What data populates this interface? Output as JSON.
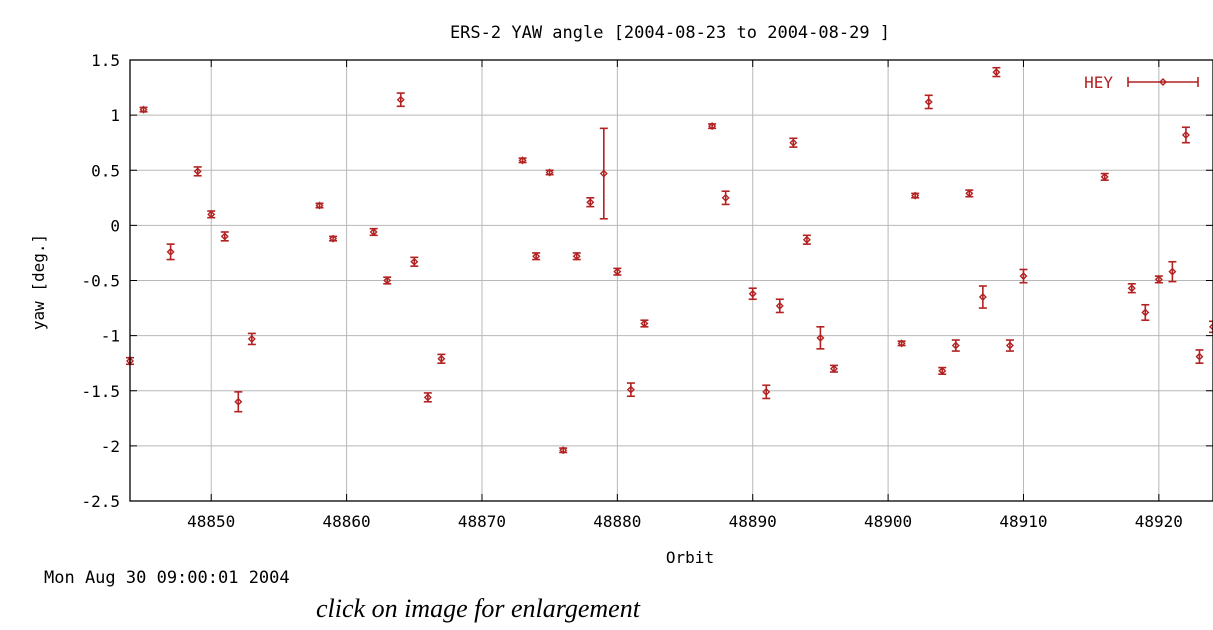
{
  "page": {
    "timestamp": "Mon Aug 30 09:00:01 2004",
    "caption": "click on image for enlargement"
  },
  "chart_data": {
    "type": "scatter",
    "title": "ERS-2 YAW angle [2004-08-23 to 2004-08-29 ]",
    "xlabel": "Orbit",
    "ylabel": "yaw [deg.]",
    "xlim": [
      48844,
      48924
    ],
    "ylim": [
      -2.5,
      1.5
    ],
    "xticks": [
      48850,
      48860,
      48870,
      48880,
      48890,
      48900,
      48910,
      48920
    ],
    "yticks": [
      1.5,
      1,
      0.5,
      0,
      -0.5,
      -1,
      -1.5,
      -2,
      -2.5
    ],
    "ytick_labels": [
      "1.5",
      "1",
      "0.5",
      "0",
      "-0.5",
      "-1",
      "-1.5",
      "-2",
      "-2.5"
    ],
    "grid": true,
    "legend_position": "top-right",
    "point_color": "#b22222",
    "series": [
      {
        "name": "HEY",
        "error_bars": true,
        "points": [
          {
            "x": 48844,
            "y": -1.23,
            "err": 0.03
          },
          {
            "x": 48845,
            "y": 1.05,
            "err": 0.02
          },
          {
            "x": 48847,
            "y": -0.24,
            "err": 0.07
          },
          {
            "x": 48849,
            "y": 0.49,
            "err": 0.04
          },
          {
            "x": 48850,
            "y": 0.1,
            "err": 0.03
          },
          {
            "x": 48851,
            "y": -0.1,
            "err": 0.04
          },
          {
            "x": 48852,
            "y": -1.6,
            "err": 0.09
          },
          {
            "x": 48853,
            "y": -1.03,
            "err": 0.05
          },
          {
            "x": 48858,
            "y": 0.18,
            "err": 0.02
          },
          {
            "x": 48859,
            "y": -0.12,
            "err": 0.02
          },
          {
            "x": 48862,
            "y": -0.06,
            "err": 0.03
          },
          {
            "x": 48863,
            "y": -0.5,
            "err": 0.03
          },
          {
            "x": 48864,
            "y": 1.14,
            "err": 0.06
          },
          {
            "x": 48865,
            "y": -0.33,
            "err": 0.04
          },
          {
            "x": 48866,
            "y": -1.56,
            "err": 0.04
          },
          {
            "x": 48867,
            "y": -1.21,
            "err": 0.04
          },
          {
            "x": 48873,
            "y": 0.59,
            "err": 0.02
          },
          {
            "x": 48874,
            "y": -0.28,
            "err": 0.03
          },
          {
            "x": 48875,
            "y": 0.48,
            "err": 0.02
          },
          {
            "x": 48876,
            "y": -2.04,
            "err": 0.02
          },
          {
            "x": 48877,
            "y": -0.28,
            "err": 0.03
          },
          {
            "x": 48878,
            "y": 0.21,
            "err": 0.04
          },
          {
            "x": 48879,
            "y": 0.47,
            "err": 0.41
          },
          {
            "x": 48880,
            "y": -0.42,
            "err": 0.03
          },
          {
            "x": 48881,
            "y": -1.49,
            "err": 0.06
          },
          {
            "x": 48882,
            "y": -0.89,
            "err": 0.03
          },
          {
            "x": 48887,
            "y": 0.9,
            "err": 0.02
          },
          {
            "x": 48888,
            "y": 0.25,
            "err": 0.06
          },
          {
            "x": 48890,
            "y": -0.62,
            "err": 0.05
          },
          {
            "x": 48891,
            "y": -1.51,
            "err": 0.06
          },
          {
            "x": 48892,
            "y": -0.73,
            "err": 0.06
          },
          {
            "x": 48893,
            "y": 0.75,
            "err": 0.04
          },
          {
            "x": 48894,
            "y": -0.13,
            "err": 0.04
          },
          {
            "x": 48895,
            "y": -1.02,
            "err": 0.1
          },
          {
            "x": 48896,
            "y": -1.3,
            "err": 0.03
          },
          {
            "x": 48901,
            "y": -1.07,
            "err": 0.02
          },
          {
            "x": 48902,
            "y": 0.27,
            "err": 0.02
          },
          {
            "x": 48903,
            "y": 1.12,
            "err": 0.06
          },
          {
            "x": 48904,
            "y": -1.32,
            "err": 0.03
          },
          {
            "x": 48905,
            "y": -1.09,
            "err": 0.05
          },
          {
            "x": 48906,
            "y": 0.29,
            "err": 0.03
          },
          {
            "x": 48907,
            "y": -0.65,
            "err": 0.1
          },
          {
            "x": 48908,
            "y": 1.39,
            "err": 0.04
          },
          {
            "x": 48909,
            "y": -1.09,
            "err": 0.05
          },
          {
            "x": 48910,
            "y": -0.46,
            "err": 0.06
          },
          {
            "x": 48916,
            "y": 0.44,
            "err": 0.03
          },
          {
            "x": 48918,
            "y": -0.57,
            "err": 0.04
          },
          {
            "x": 48919,
            "y": -0.79,
            "err": 0.07
          },
          {
            "x": 48920,
            "y": -0.49,
            "err": 0.03
          },
          {
            "x": 48921,
            "y": -0.42,
            "err": 0.09
          },
          {
            "x": 48922,
            "y": 0.82,
            "err": 0.07
          },
          {
            "x": 48923,
            "y": -1.19,
            "err": 0.06
          },
          {
            "x": 48924,
            "y": -0.92,
            "err": 0.05
          }
        ]
      }
    ]
  }
}
